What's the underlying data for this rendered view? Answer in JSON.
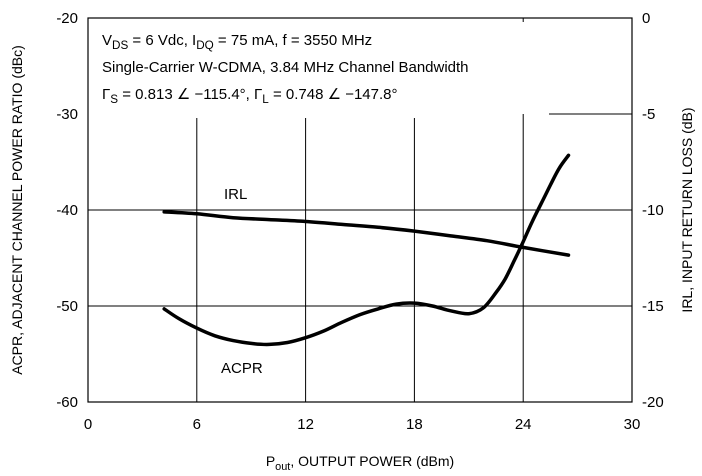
{
  "chart_data": {
    "type": "line",
    "title": "",
    "annotation_lines": [
      "V<sub>DS</sub> = 6 Vdc, I<sub>DQ</sub> = 75 mA, f = 3550 MHz",
      "Single-Carrier W-CDMA, 3.84 MHz Channel Bandwidth",
      "Γ<sub>S</sub> = 0.813 ∠ −115.4°, Γ<sub>L</sub> = 0.748 ∠ −147.8°"
    ],
    "xlabel": "P<sub>out</sub>, OUTPUT POWER (dBm)",
    "ylabel_left": "ACPR, ADJACENT CHANNEL POWER RATIO (dBc)",
    "ylabel_right": "IRL,  INPUT RETURN LOSS (dB)",
    "xlim": [
      0,
      30
    ],
    "ylim_left": [
      -60,
      -20
    ],
    "ylim_right": [
      -20,
      0
    ],
    "x_ticks": [
      "0",
      "6",
      "12",
      "18",
      "24",
      "30"
    ],
    "y_left_ticks": [
      "-60",
      "-50",
      "-40",
      "-30",
      "-20"
    ],
    "y_right_ticks": [
      "-20",
      "-15",
      "-10",
      "-5",
      "0"
    ],
    "grid": true,
    "series": [
      {
        "name": "ACPR",
        "axis": "left",
        "x": [
          4.2,
          5,
          6,
          7,
          8,
          9,
          10,
          11,
          12,
          13,
          14,
          15,
          16,
          17,
          18,
          19,
          20,
          21,
          21.8,
          22.5,
          23,
          23.5,
          24,
          24.5,
          25,
          25.5,
          26,
          26.5
        ],
        "y": [
          -50.3,
          -51.3,
          -52.3,
          -53.1,
          -53.6,
          -53.9,
          -54.0,
          -53.8,
          -53.3,
          -52.6,
          -51.7,
          -50.9,
          -50.3,
          -49.8,
          -49.7,
          -50.0,
          -50.5,
          -50.8,
          -50.2,
          -48.6,
          -47.2,
          -45.3,
          -43.3,
          -41.2,
          -39.3,
          -37.4,
          -35.6,
          -34.3
        ]
      },
      {
        "name": "IRL",
        "axis": "right",
        "x": [
          4.2,
          6,
          8,
          10,
          12,
          14,
          16,
          18,
          20,
          22,
          24,
          26.5
        ],
        "y": [
          -10.1,
          -10.2,
          -10.4,
          -10.5,
          -10.6,
          -10.75,
          -10.9,
          -11.1,
          -11.35,
          -11.6,
          -11.95,
          -12.35
        ]
      }
    ],
    "series_labels": [
      "IRL",
      "ACPR"
    ]
  }
}
